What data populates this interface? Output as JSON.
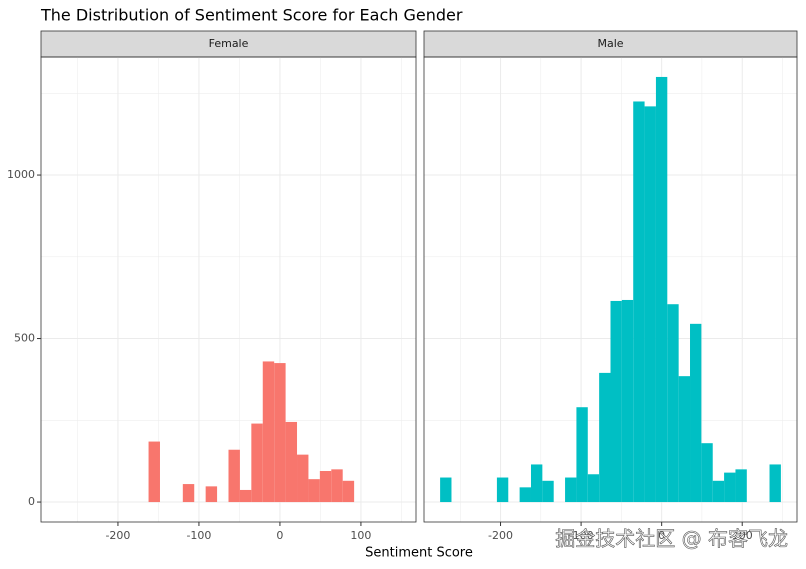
{
  "chart_data": {
    "type": "histogram",
    "title": "The Distribution of Sentiment Score for Each Gender",
    "x_label": "Sentiment Score",
    "bins": [
      -275,
      -260.9,
      -246.8,
      -232.7,
      -218.6,
      -204.5,
      -190.4,
      -176.3,
      -162.2,
      -148.1,
      -134,
      -119.9,
      -105.8,
      -91.7,
      -77.6,
      -63.5,
      -49.4,
      -35.3,
      -21.2,
      -7.1,
      7,
      21.1,
      35.2,
      49.3,
      63.4,
      77.5,
      91.6,
      105.7,
      119.8,
      133.9,
      148
    ],
    "series": [
      {
        "name": "Female",
        "color": "#f8766d",
        "values": [
          0,
          0,
          0,
          0,
          0,
          0,
          0,
          0,
          185,
          0,
          0,
          55,
          0,
          48,
          0,
          160,
          37,
          240,
          430,
          425,
          245,
          145,
          70,
          95,
          100,
          65,
          0,
          0,
          0,
          0
        ]
      },
      {
        "name": "Male",
        "color": "#00bfc4",
        "values": [
          75,
          0,
          0,
          0,
          0,
          75,
          0,
          45,
          115,
          65,
          0,
          75,
          290,
          85,
          395,
          615,
          618,
          1225,
          1210,
          1300,
          605,
          385,
          545,
          180,
          65,
          90,
          100,
          0,
          0,
          115
        ]
      }
    ],
    "xlim": [
      -295,
      168
    ],
    "xticks": [
      -200,
      -100,
      0,
      100
    ],
    "ylim": [
      -61,
      1361
    ],
    "yticks": [
      0,
      500,
      1000
    ],
    "grid": true,
    "watermark": "掘金技术社区 @ 布客飞龙"
  }
}
